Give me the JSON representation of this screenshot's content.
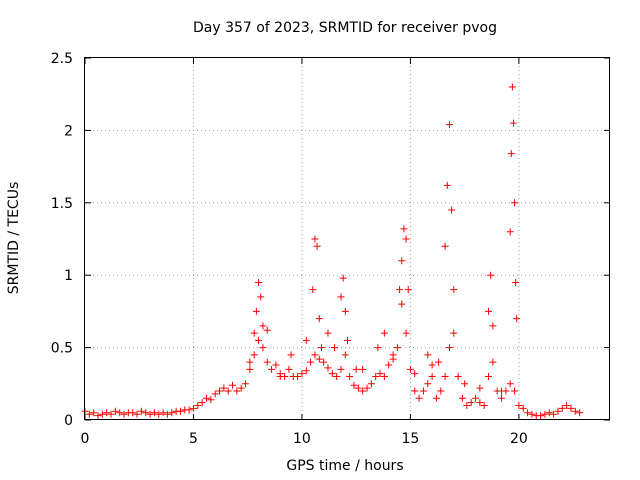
{
  "chart_data": {
    "type": "scatter",
    "title": "Day 357 of 2023, SRMTID for receiver pvog",
    "xlabel": "GPS time / hours",
    "ylabel": "SRMTID / TECUs",
    "xlim": [
      0,
      24.2
    ],
    "ylim": [
      0,
      2.5
    ],
    "x_ticks": [
      0,
      5,
      10,
      15,
      20
    ],
    "x_tick_labels": [
      "0",
      "5",
      "10",
      "15",
      "20"
    ],
    "y_ticks": [
      0,
      0.5,
      1,
      1.5,
      2,
      2.5
    ],
    "y_tick_labels": [
      "0",
      "0.5",
      "1",
      "1.5",
      "2",
      "2.5"
    ],
    "grid": true,
    "marker": "+",
    "series": [
      {
        "name": "SRMTID",
        "color": "#ff0000",
        "x": [
          0.0,
          0.2,
          0.4,
          0.6,
          0.8,
          1.0,
          1.2,
          1.4,
          1.6,
          1.8,
          2.0,
          2.2,
          2.4,
          2.6,
          2.8,
          3.0,
          3.2,
          3.4,
          3.6,
          3.8,
          4.0,
          4.2,
          4.4,
          4.6,
          4.8,
          5.0,
          5.2,
          5.4,
          5.6,
          5.8,
          6.0,
          6.2,
          6.4,
          6.6,
          6.8,
          7.0,
          7.2,
          7.4,
          7.6,
          7.8,
          8.0,
          8.2,
          8.4,
          8.6,
          8.8,
          9.0,
          9.2,
          9.4,
          9.6,
          9.8,
          10.0,
          10.2,
          10.4,
          10.6,
          10.8,
          11.0,
          11.2,
          11.4,
          11.6,
          11.8,
          12.0,
          12.2,
          12.4,
          12.6,
          12.8,
          13.0,
          13.2,
          13.4,
          13.6,
          13.8,
          14.0,
          14.2,
          14.4,
          14.6,
          14.8,
          15.0,
          15.2,
          15.4,
          15.6,
          15.8,
          16.0,
          16.2,
          16.4,
          16.6,
          16.8,
          17.0,
          17.2,
          17.4,
          17.6,
          17.8,
          18.0,
          18.2,
          18.4,
          18.6,
          18.8,
          19.0,
          19.2,
          19.4,
          19.6,
          19.8,
          20.0,
          20.2,
          20.4,
          20.6,
          20.8,
          21.0,
          21.2,
          21.4,
          21.6,
          21.8,
          22.0,
          22.2,
          22.4,
          22.6,
          22.8,
          7.8,
          7.9,
          8.0,
          8.1,
          8.2,
          10.5,
          10.6,
          10.7,
          10.8,
          10.9,
          11.8,
          11.9,
          12.0,
          12.1,
          14.5,
          14.6,
          14.7,
          14.8,
          14.9,
          16.6,
          16.7,
          16.8,
          16.9,
          17.0,
          18.6,
          18.7,
          18.8,
          19.6,
          19.65,
          19.7,
          19.75,
          19.8,
          19.85,
          19.9,
          7.6,
          8.4,
          9.5,
          10.2,
          11.2,
          11.5,
          12.5,
          13.5,
          13.8,
          14.2,
          15.2,
          15.8,
          16.3,
          17.5,
          18.2,
          19.2,
          9.0,
          12.8,
          16.0
        ],
        "y": [
          0.06,
          0.04,
          0.05,
          0.03,
          0.04,
          0.05,
          0.04,
          0.06,
          0.05,
          0.04,
          0.05,
          0.05,
          0.04,
          0.06,
          0.05,
          0.04,
          0.05,
          0.04,
          0.05,
          0.04,
          0.05,
          0.06,
          0.06,
          0.07,
          0.07,
          0.08,
          0.1,
          0.12,
          0.15,
          0.14,
          0.18,
          0.2,
          0.22,
          0.2,
          0.24,
          0.2,
          0.22,
          0.25,
          0.35,
          0.45,
          0.55,
          0.5,
          0.4,
          0.35,
          0.38,
          0.32,
          0.3,
          0.35,
          0.3,
          0.3,
          0.32,
          0.34,
          0.4,
          0.45,
          0.42,
          0.4,
          0.36,
          0.32,
          0.3,
          0.35,
          0.45,
          0.3,
          0.24,
          0.22,
          0.2,
          0.22,
          0.25,
          0.3,
          0.32,
          0.3,
          0.38,
          0.45,
          0.5,
          0.8,
          0.6,
          0.35,
          0.2,
          0.15,
          0.2,
          0.25,
          0.3,
          0.15,
          0.2,
          0.3,
          0.5,
          0.6,
          0.3,
          0.15,
          0.1,
          0.12,
          0.15,
          0.12,
          0.1,
          0.3,
          0.4,
          0.2,
          0.15,
          0.2,
          0.25,
          0.2,
          0.1,
          0.08,
          0.05,
          0.04,
          0.03,
          0.03,
          0.04,
          0.05,
          0.04,
          0.06,
          0.08,
          0.1,
          0.08,
          0.06,
          0.05,
          0.6,
          0.75,
          0.95,
          0.85,
          0.65,
          0.9,
          1.25,
          1.2,
          0.7,
          0.5,
          0.85,
          0.98,
          0.75,
          0.55,
          0.9,
          1.1,
          1.32,
          1.25,
          0.9,
          1.2,
          1.62,
          2.04,
          1.45,
          0.9,
          0.75,
          1.0,
          0.65,
          1.3,
          1.84,
          2.3,
          2.05,
          1.5,
          0.95,
          0.7,
          0.4,
          0.62,
          0.45,
          0.55,
          0.6,
          0.5,
          0.35,
          0.5,
          0.6,
          0.42,
          0.32,
          0.45,
          0.4,
          0.25,
          0.22,
          0.2,
          0.3,
          0.35,
          0.38
        ]
      }
    ]
  }
}
